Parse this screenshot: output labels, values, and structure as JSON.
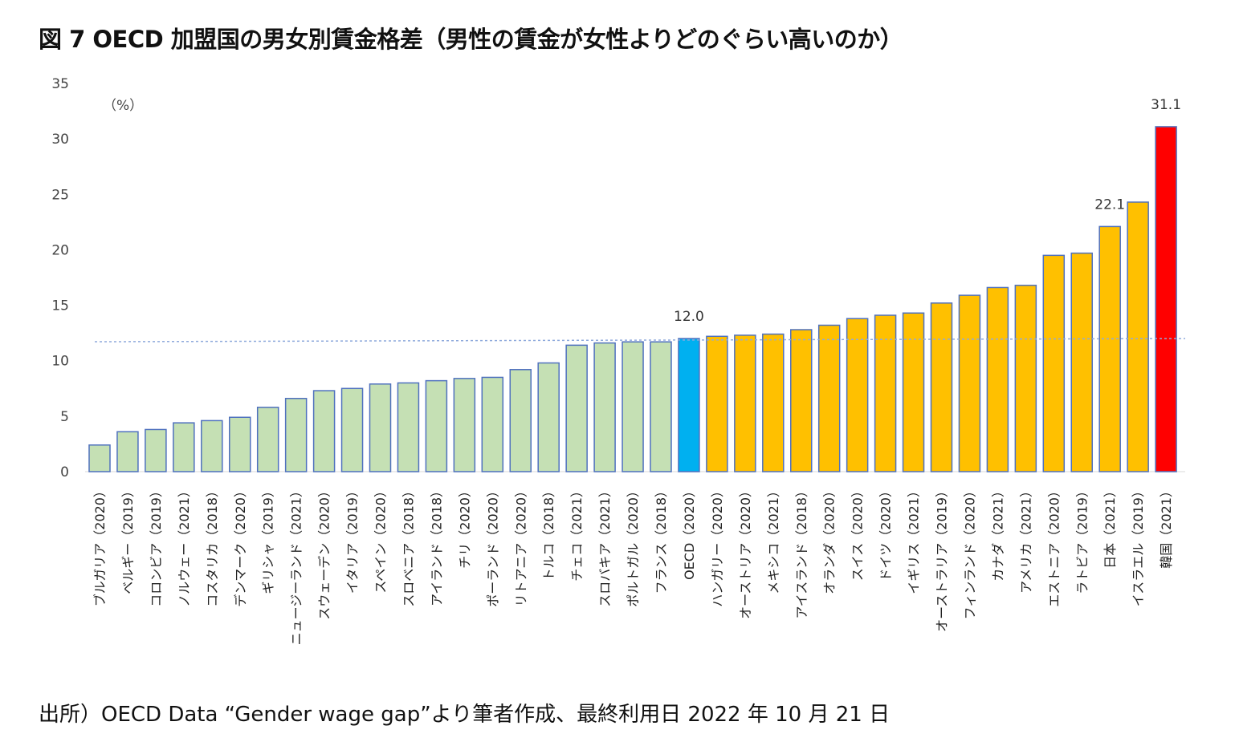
{
  "title": "図 7 OECD 加盟国の男女別賃金格差（男性の賃金が女性よりどのぐらい高いのか）",
  "source": "出所）OECD Data “Gender wage gap”より筆者作成、最終利用日 2022 年 10 月 21 日",
  "chart_data": {
    "type": "bar",
    "title": "図 7 OECD 加盟国の男女別賃金格差（男性の賃金が女性よりどのぐらい高いのか）",
    "ylabel": "（%）",
    "xlabel": "",
    "ylim": [
      0,
      35
    ],
    "yticks": [
      0,
      5,
      10,
      15,
      20,
      25,
      30,
      35
    ],
    "grid": false,
    "reference_line": {
      "value": 12.0,
      "style": "dashed",
      "color": "#8faadc"
    },
    "categories": [
      "ブルガリア（2020）",
      "ベルギー（2019）",
      "コロンビア（2019）",
      "ノルウェー（2021）",
      "コスタリカ（2018）",
      "デンマーク（2020）",
      "ギリシャ（2019）",
      "ニュージーランド（2021）",
      "スウェーデン（2020）",
      "イタリア（2019）",
      "スペイン（2020）",
      "スロベニア（2018）",
      "アイランド（2018）",
      "チリ（2020）",
      "ポーランド（2020）",
      "リトアニア（2020）",
      "トルコ（2018）",
      "チェコ（2021）",
      "スロバキア（2021）",
      "ポルトガル（2020）",
      "フランス（2018）",
      "OECD（2020）",
      "ハンガリー（2020）",
      "オーストリア（2020）",
      "メキシコ（2021）",
      "アイスランド（2018）",
      "オランダ（2020）",
      "スイス（2020）",
      "ドイツ（2020）",
      "イギリス（2021）",
      "オーストラリア（2019）",
      "フィンランド（2020）",
      "カナダ（2021）",
      "アメリカ（2021）",
      "エストニア（2020）",
      "ラトビア（2019）",
      "日本（2021）",
      "イスラエル（2019）",
      "韓国（2021）"
    ],
    "values": [
      2.4,
      3.6,
      3.8,
      4.4,
      4.6,
      4.9,
      5.8,
      6.6,
      7.3,
      7.5,
      7.9,
      8.0,
      8.2,
      8.4,
      8.5,
      9.2,
      9.8,
      11.4,
      11.6,
      11.7,
      11.7,
      12.0,
      12.2,
      12.3,
      12.4,
      12.8,
      13.2,
      13.8,
      14.1,
      14.3,
      15.2,
      15.9,
      16.6,
      16.8,
      19.5,
      19.7,
      22.1,
      24.3,
      31.1
    ],
    "data_labels": [
      {
        "index": 21,
        "text": "12.0"
      },
      {
        "index": 36,
        "text": "22.1"
      },
      {
        "index": 38,
        "text": "31.1"
      }
    ],
    "colors": {
      "below_oecd": "#c5e0b4",
      "oecd": "#00b0f0",
      "above_oecd": "#ffc000",
      "korea": "#ff0000",
      "bar_border": "#4f71be"
    }
  }
}
